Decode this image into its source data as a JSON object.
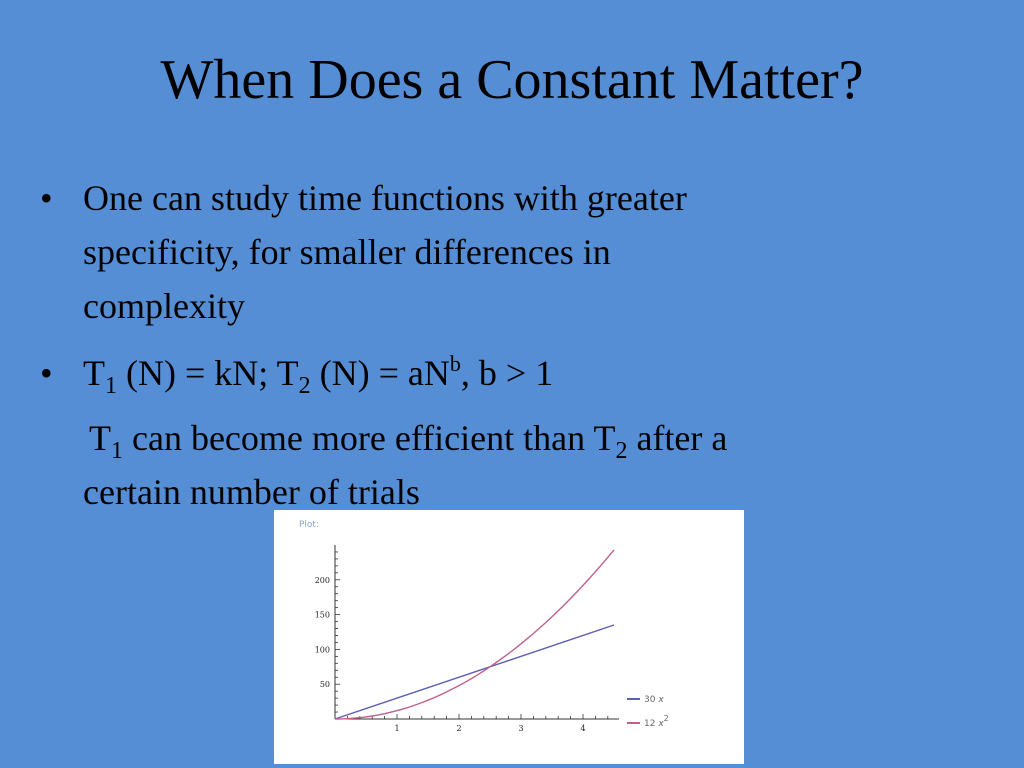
{
  "slide": {
    "title": "When Does a Constant Matter?",
    "bullet1": {
      "marker": "•",
      "line1": "One can study time functions with greater",
      "line2": "specificity, for smaller differences in",
      "line3": "complexity"
    },
    "bullet2": {
      "marker": "•",
      "t1": "T",
      "t1_sub": "1",
      "part_a": " (N) = kN; T",
      "t2_sub": "2",
      "part_b": " (N) = aN",
      "exp": "b",
      "part_c": ",  b > 1"
    },
    "continuation": {
      "t1": "T",
      "t1_sub": "1",
      "mid": " can become more efficient than T",
      "t2_sub": "2",
      "end": " after a",
      "line2": "certain number of trials"
    }
  },
  "plot": {
    "caption": "Plot:",
    "legend": [
      {
        "coef": "30",
        "var": "x",
        "exp": "",
        "color": "#5b5fb5"
      },
      {
        "coef": "12",
        "var": "x",
        "exp": "2",
        "color": "#c0608a"
      }
    ]
  },
  "chart_data": {
    "type": "line",
    "x_range": [
      0,
      4.5
    ],
    "ylim": [
      0,
      250
    ],
    "x_ticks": [
      1,
      2,
      3,
      4
    ],
    "y_ticks": [
      50,
      100,
      150,
      200
    ],
    "grid": false,
    "legend_position": "bottom-right",
    "series": [
      {
        "name": "30 x",
        "color": "#5b5fb5",
        "x": [
          0,
          4.5
        ],
        "y": [
          0,
          135
        ]
      },
      {
        "name": "12 x²",
        "color": "#c0608a",
        "x": [
          0,
          0.5,
          1,
          1.5,
          2,
          2.5,
          3,
          3.5,
          4,
          4.5
        ],
        "y": [
          0,
          3,
          12,
          27,
          48,
          75,
          108,
          147,
          192,
          243
        ]
      }
    ]
  }
}
